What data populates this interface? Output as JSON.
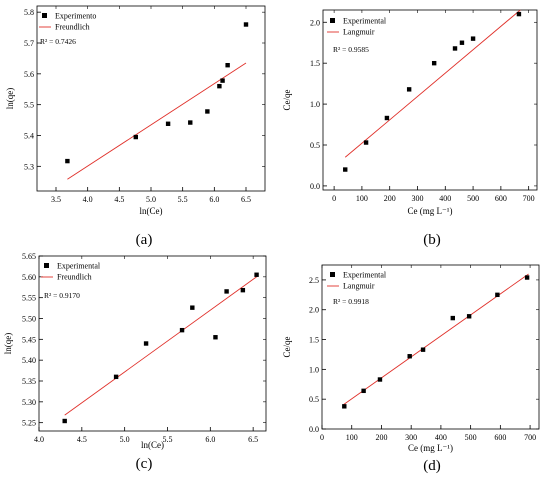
{
  "chart_data": [
    {
      "id": "a",
      "type": "scatter",
      "caption": "(a)",
      "xlabel": "ln(Ce)",
      "ylabel": "ln(qe)",
      "xlim": [
        3.2,
        6.8
      ],
      "ylim": [
        5.22,
        5.82
      ],
      "xticks": [
        3.5,
        4.0,
        4.5,
        5.0,
        5.5,
        6.0,
        6.5
      ],
      "yticks": [
        5.3,
        5.4,
        5.5,
        5.6,
        5.7,
        5.8
      ],
      "xtick_labels": [
        "3.5",
        "4.0",
        "4.5",
        "5.0",
        "5.5",
        "6.0",
        "6.5"
      ],
      "ytick_labels": [
        "5.3",
        "5.4",
        "5.5",
        "5.6",
        "5.7",
        "5.8"
      ],
      "legend": {
        "position": "top-left",
        "points": "Experimento",
        "line": "Freundlich"
      },
      "r2": "R² = 0.7426",
      "points": [
        {
          "x": 3.68,
          "y": 5.317
        },
        {
          "x": 4.76,
          "y": 5.395
        },
        {
          "x": 5.27,
          "y": 5.438
        },
        {
          "x": 5.62,
          "y": 5.442
        },
        {
          "x": 5.89,
          "y": 5.478
        },
        {
          "x": 6.08,
          "y": 5.56
        },
        {
          "x": 6.13,
          "y": 5.578
        },
        {
          "x": 6.21,
          "y": 5.628
        },
        {
          "x": 6.5,
          "y": 5.76
        }
      ],
      "fit_line": [
        {
          "x": 3.68,
          "y": 5.258
        },
        {
          "x": 6.5,
          "y": 5.635
        }
      ]
    },
    {
      "id": "b",
      "type": "scatter",
      "caption": "(b)",
      "xlabel": "Ce (mg L⁻¹)",
      "ylabel": "Ce/qe",
      "xlim": [
        -40,
        730
      ],
      "ylim": [
        -0.05,
        2.15
      ],
      "xticks": [
        0,
        100,
        200,
        300,
        400,
        500,
        600,
        700
      ],
      "yticks": [
        0.0,
        0.5,
        1.0,
        1.5,
        2.0
      ],
      "xtick_labels": [
        "0",
        "100",
        "200",
        "300",
        "400",
        "500",
        "600",
        "700"
      ],
      "ytick_labels": [
        "0.0",
        "0.5",
        "1.0",
        "1.5",
        "2.0"
      ],
      "legend": {
        "position": "top-left",
        "points": "Experimental",
        "line": "Langmuir"
      },
      "r2": "R² = 0.9585",
      "points": [
        {
          "x": 40,
          "y": 0.2
        },
        {
          "x": 115,
          "y": 0.53
        },
        {
          "x": 190,
          "y": 0.83
        },
        {
          "x": 270,
          "y": 1.18
        },
        {
          "x": 360,
          "y": 1.5
        },
        {
          "x": 435,
          "y": 1.68
        },
        {
          "x": 460,
          "y": 1.75
        },
        {
          "x": 500,
          "y": 1.8
        },
        {
          "x": 665,
          "y": 2.1
        }
      ],
      "fit_line": [
        {
          "x": 40,
          "y": 0.35
        },
        {
          "x": 670,
          "y": 2.15
        }
      ]
    },
    {
      "id": "c",
      "type": "scatter",
      "caption": "(c)",
      "xlabel": "ln(Ce)",
      "ylabel": "ln(qe)",
      "xlim": [
        4.0,
        6.65
      ],
      "ylim": [
        5.23,
        5.65
      ],
      "xticks": [
        4.0,
        4.5,
        5.0,
        5.5,
        6.0,
        6.5
      ],
      "yticks": [
        5.25,
        5.3,
        5.35,
        5.4,
        5.45,
        5.5,
        5.55,
        5.6,
        5.65
      ],
      "xtick_labels": [
        "4.0",
        "4.5",
        "5.0",
        "5.5",
        "6.0",
        "6.5"
      ],
      "ytick_labels": [
        "5.25",
        "5.30",
        "5.35",
        "5.40",
        "5.45",
        "5.50",
        "5.55",
        "5.60",
        "5.65"
      ],
      "legend": {
        "position": "top-left",
        "points": "Experimental",
        "line": "Freundlich"
      },
      "r2": "R² = 0.9170",
      "points": [
        {
          "x": 4.3,
          "y": 5.254
        },
        {
          "x": 4.9,
          "y": 5.36
        },
        {
          "x": 5.25,
          "y": 5.44
        },
        {
          "x": 5.67,
          "y": 5.472
        },
        {
          "x": 5.79,
          "y": 5.526
        },
        {
          "x": 6.06,
          "y": 5.455
        },
        {
          "x": 6.19,
          "y": 5.565
        },
        {
          "x": 6.38,
          "y": 5.568
        },
        {
          "x": 6.54,
          "y": 5.605
        }
      ],
      "fit_line": [
        {
          "x": 4.3,
          "y": 5.268
        },
        {
          "x": 6.54,
          "y": 5.6
        }
      ]
    },
    {
      "id": "d",
      "type": "scatter",
      "caption": "(d)",
      "xlabel": "Ce (mg L⁻¹)",
      "ylabel": "Ce/qe",
      "xlim": [
        0,
        730
      ],
      "ylim": [
        0.0,
        2.75
      ],
      "xticks": [
        0,
        100,
        200,
        300,
        400,
        500,
        600,
        700
      ],
      "yticks": [
        0.0,
        0.5,
        1.0,
        1.5,
        2.0,
        2.5
      ],
      "xtick_labels": [
        "0",
        "100",
        "200",
        "300",
        "400",
        "500",
        "600",
        "700"
      ],
      "ytick_labels": [
        "0.0",
        "0.5",
        "1.0",
        "1.5",
        "2.0",
        "2.5"
      ],
      "legend": {
        "position": "top-left",
        "points": "Experimental",
        "line": "Langmuir"
      },
      "r2": "R² = 0.9918",
      "points": [
        {
          "x": 75,
          "y": 0.38
        },
        {
          "x": 140,
          "y": 0.64
        },
        {
          "x": 195,
          "y": 0.83
        },
        {
          "x": 295,
          "y": 1.22
        },
        {
          "x": 340,
          "y": 1.33
        },
        {
          "x": 440,
          "y": 1.86
        },
        {
          "x": 495,
          "y": 1.89
        },
        {
          "x": 590,
          "y": 2.25
        },
        {
          "x": 690,
          "y": 2.54
        }
      ],
      "fit_line": [
        {
          "x": 70,
          "y": 0.4
        },
        {
          "x": 695,
          "y": 2.6
        }
      ]
    }
  ]
}
